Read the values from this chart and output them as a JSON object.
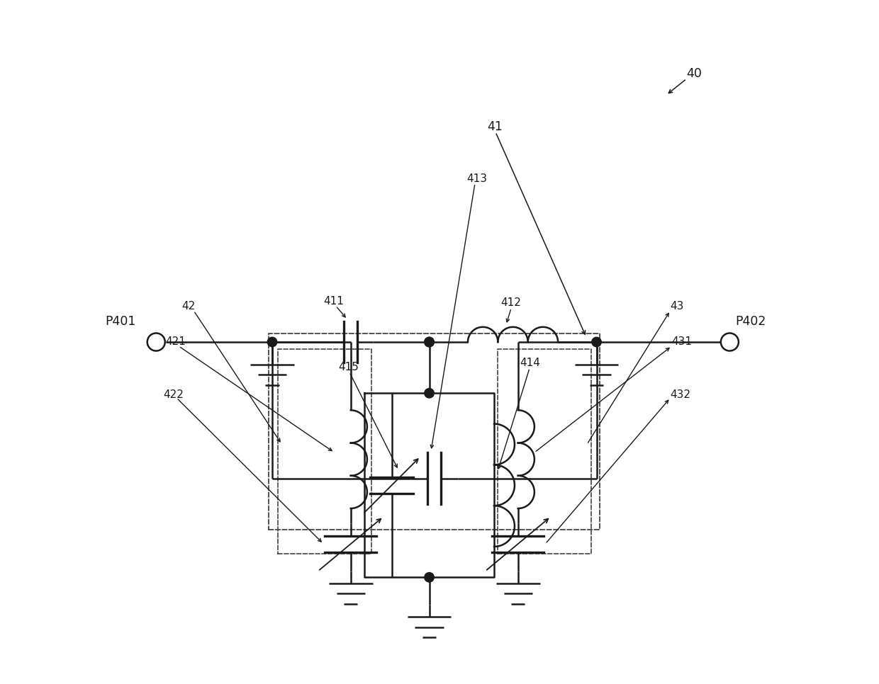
{
  "bg_color": "#ffffff",
  "line_color": "#1a1a1a",
  "fig_width": 12.4,
  "fig_height": 9.66
}
